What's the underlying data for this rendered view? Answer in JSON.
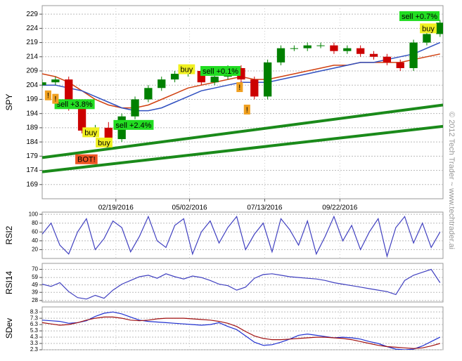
{
  "watermark": "© 2012 Tech Trader ~ www.techtrader.ai",
  "chart_data": [
    {
      "type": "candlestick",
      "ylabel": "SPY",
      "xlim": [
        0,
        272
      ],
      "ylim": [
        164,
        232
      ],
      "yticks": [
        169,
        174,
        179,
        184,
        189,
        194,
        199,
        204,
        209,
        214,
        219,
        224,
        229
      ],
      "xticks": [
        {
          "value": 50,
          "label": "02/19/2016"
        },
        {
          "value": 100,
          "label": "05/02/2016"
        },
        {
          "value": 151,
          "label": "07/13/2016"
        },
        {
          "value": 202,
          "label": "09/22/2016"
        }
      ],
      "grid": true,
      "up_color": "#008000",
      "down_color": "#cc0000",
      "x": [
        0,
        9,
        18,
        27,
        36,
        45,
        54,
        63,
        72,
        81,
        90,
        99,
        108,
        117,
        126,
        135,
        144,
        153,
        162,
        171,
        180,
        189,
        198,
        207,
        216,
        225,
        234,
        243,
        252,
        261,
        270
      ],
      "open": [
        204,
        205,
        206,
        196,
        188,
        189,
        185,
        193,
        199,
        203,
        206,
        208,
        209,
        205,
        207,
        210,
        206,
        200,
        212,
        217,
        217,
        218,
        218,
        216,
        217,
        215,
        214,
        212,
        210,
        219,
        222
      ],
      "high": [
        206,
        207,
        207,
        197,
        190,
        191,
        194,
        200,
        204,
        207,
        209,
        210,
        210,
        208,
        211,
        211,
        207,
        213,
        218,
        218,
        219,
        219,
        219,
        218,
        218,
        216,
        215,
        213,
        220,
        223,
        227
      ],
      "low": [
        203,
        204,
        195,
        187,
        186,
        184,
        184,
        192,
        198,
        202,
        205,
        207,
        204,
        204,
        206,
        205,
        199,
        199,
        211,
        216,
        216,
        217,
        215,
        215,
        214,
        213,
        211,
        209,
        209,
        218,
        221
      ],
      "close": [
        205,
        206,
        196,
        188,
        189,
        185,
        193,
        199,
        203,
        206,
        208,
        209,
        205,
        207,
        210,
        206,
        200,
        212,
        217,
        217,
        218,
        218,
        216,
        217,
        215,
        214,
        212,
        210,
        219,
        222,
        226
      ],
      "overlays": [
        {
          "color": "#d04010",
          "x": [
            0,
            9,
            18,
            27,
            36,
            45,
            54,
            63,
            72,
            81,
            90,
            99,
            108,
            117,
            126,
            135,
            144,
            153,
            162,
            171,
            180,
            189,
            198,
            207,
            216,
            225,
            234,
            243,
            252,
            261,
            270
          ],
          "values": [
            208,
            207,
            205,
            202,
            199,
            197,
            196,
            196,
            197,
            199,
            201,
            203,
            204,
            205,
            206,
            207,
            206,
            206,
            207,
            208,
            209,
            210,
            211,
            211,
            212,
            212,
            212,
            212,
            213,
            214,
            215
          ]
        },
        {
          "color": "#3050c0",
          "x": [
            0,
            9,
            18,
            27,
            36,
            45,
            54,
            63,
            72,
            81,
            90,
            99,
            108,
            117,
            126,
            135,
            144,
            153,
            162,
            171,
            180,
            189,
            198,
            207,
            216,
            225,
            234,
            243,
            252,
            261,
            270
          ],
          "values": [
            204,
            204,
            203,
            202,
            200,
            198,
            196,
            195,
            195,
            196,
            198,
            200,
            202,
            203,
            204,
            205,
            205,
            205,
            206,
            207,
            208,
            209,
            210,
            211,
            212,
            212,
            213,
            214,
            215,
            217,
            219
          ]
        },
        {
          "color": "#1a8a1a",
          "x": [
            0,
            272
          ],
          "values": [
            178.5,
            197
          ]
        },
        {
          "color": "#1a8a1a",
          "x": [
            0,
            272
          ],
          "values": [
            173.5,
            189.5
          ]
        }
      ],
      "annotations": [
        {
          "text": "sell +3.8%",
          "x": 22,
          "y": 197.3,
          "color": "#22dd22"
        },
        {
          "text": "buy",
          "x": 33,
          "y": 187.4,
          "color": "#f0f020"
        },
        {
          "text": "buy",
          "x": 42,
          "y": 183.8,
          "color": "#f0f020"
        },
        {
          "text": "BOT!",
          "x": 30,
          "y": 177.9,
          "color": "#ee5522"
        },
        {
          "text": "sell +2.4%",
          "x": 62,
          "y": 190,
          "color": "#22dd22"
        },
        {
          "text": "buy",
          "x": 98,
          "y": 209.6,
          "color": "#f0f020"
        },
        {
          "text": "sell +0.1%",
          "x": 121,
          "y": 209,
          "color": "#22dd22"
        },
        {
          "text": "sell +0.7%",
          "x": 256,
          "y": 228.3,
          "color": "#22dd22"
        },
        {
          "text": "buy",
          "x": 262,
          "y": 224,
          "color": "#f0f020"
        },
        {
          "text": "!",
          "x": 4,
          "y": 200.4,
          "color": "#f0a020"
        },
        {
          "text": "!",
          "x": 9,
          "y": 199.2,
          "color": "#f0a020"
        },
        {
          "text": "!",
          "x": 134,
          "y": 203.3,
          "color": "#f0a020"
        },
        {
          "text": "!",
          "x": 139,
          "y": 195.4,
          "color": "#f0a020"
        }
      ]
    },
    {
      "type": "line",
      "ylabel": "RSI2",
      "xlim": [
        0,
        272
      ],
      "ylim": [
        0,
        105
      ],
      "yticks": [
        20,
        40,
        60,
        80,
        100
      ],
      "grid": true,
      "x": [
        0,
        6,
        12,
        18,
        24,
        30,
        36,
        42,
        48,
        54,
        60,
        66,
        72,
        78,
        84,
        90,
        96,
        102,
        108,
        114,
        120,
        126,
        132,
        138,
        144,
        150,
        156,
        162,
        168,
        174,
        180,
        186,
        192,
        198,
        204,
        210,
        216,
        222,
        228,
        234,
        240,
        246,
        252,
        258,
        264,
        270
      ],
      "series": [
        {
          "color": "#4040c0",
          "values": [
            55,
            80,
            30,
            10,
            60,
            90,
            20,
            45,
            85,
            70,
            15,
            50,
            95,
            40,
            25,
            75,
            90,
            10,
            60,
            85,
            35,
            70,
            95,
            20,
            55,
            80,
            15,
            90,
            65,
            30,
            85,
            10,
            50,
            95,
            40,
            75,
            20,
            60,
            90,
            5,
            70,
            95,
            35,
            80,
            25,
            60
          ]
        }
      ]
    },
    {
      "type": "line",
      "ylabel": "RSI14",
      "xlim": [
        0,
        272
      ],
      "ylim": [
        26,
        78
      ],
      "yticks": [
        28,
        39,
        49,
        59,
        70
      ],
      "grid": true,
      "x": [
        0,
        6,
        12,
        18,
        24,
        30,
        36,
        42,
        48,
        54,
        60,
        66,
        72,
        78,
        84,
        90,
        96,
        102,
        108,
        114,
        120,
        126,
        132,
        138,
        144,
        150,
        156,
        162,
        168,
        174,
        180,
        186,
        192,
        198,
        204,
        210,
        216,
        222,
        228,
        234,
        240,
        246,
        252,
        258,
        264,
        270
      ],
      "series": [
        {
          "color": "#4040c0",
          "values": [
            50,
            47,
            52,
            40,
            32,
            30,
            35,
            31,
            42,
            50,
            55,
            60,
            62,
            58,
            64,
            60,
            57,
            61,
            59,
            55,
            50,
            48,
            42,
            46,
            58,
            63,
            64,
            62,
            60,
            59,
            58,
            57,
            55,
            52,
            50,
            48,
            46,
            44,
            42,
            40,
            36,
            55,
            62,
            66,
            70,
            52
          ]
        }
      ]
    },
    {
      "type": "line",
      "ylabel": "SDev",
      "xlim": [
        0,
        272
      ],
      "ylim": [
        2.3,
        9.1
      ],
      "yticks": [
        2.3,
        3.3,
        4.3,
        5.3,
        6.3,
        7.3,
        8.3
      ],
      "grid": true,
      "x": [
        0,
        6,
        12,
        18,
        24,
        30,
        36,
        42,
        48,
        54,
        60,
        66,
        72,
        78,
        84,
        90,
        96,
        102,
        108,
        114,
        120,
        126,
        132,
        138,
        144,
        150,
        156,
        162,
        168,
        174,
        180,
        186,
        192,
        198,
        204,
        210,
        216,
        222,
        228,
        234,
        240,
        246,
        252,
        258,
        264,
        270
      ],
      "series": [
        {
          "color": "#2030d0",
          "values": [
            7.0,
            6.9,
            6.8,
            6.5,
            6.6,
            6.9,
            7.6,
            8.1,
            8.3,
            8.0,
            7.5,
            7.0,
            6.8,
            6.7,
            6.6,
            6.5,
            6.4,
            6.3,
            6.2,
            6.3,
            6.6,
            6.0,
            5.5,
            4.5,
            3.5,
            3.0,
            3.1,
            3.5,
            4.0,
            4.6,
            4.8,
            4.6,
            4.4,
            4.2,
            4.3,
            4.2,
            4.0,
            3.6,
            3.3,
            2.8,
            2.4,
            2.3,
            2.4,
            2.9,
            3.6,
            4.3
          ]
        },
        {
          "color": "#a01010",
          "values": [
            6.6,
            6.4,
            6.2,
            6.3,
            6.6,
            7.0,
            7.3,
            7.5,
            7.5,
            7.3,
            7.0,
            6.9,
            7.0,
            7.2,
            7.3,
            7.3,
            7.3,
            7.2,
            7.1,
            7.0,
            6.8,
            6.5,
            6.0,
            5.2,
            4.5,
            4.1,
            3.9,
            3.9,
            4.0,
            4.1,
            4.2,
            4.3,
            4.3,
            4.2,
            4.1,
            3.9,
            3.6,
            3.3,
            3.0,
            2.8,
            2.7,
            2.6,
            2.5,
            2.6,
            2.9,
            3.3
          ]
        }
      ]
    }
  ]
}
